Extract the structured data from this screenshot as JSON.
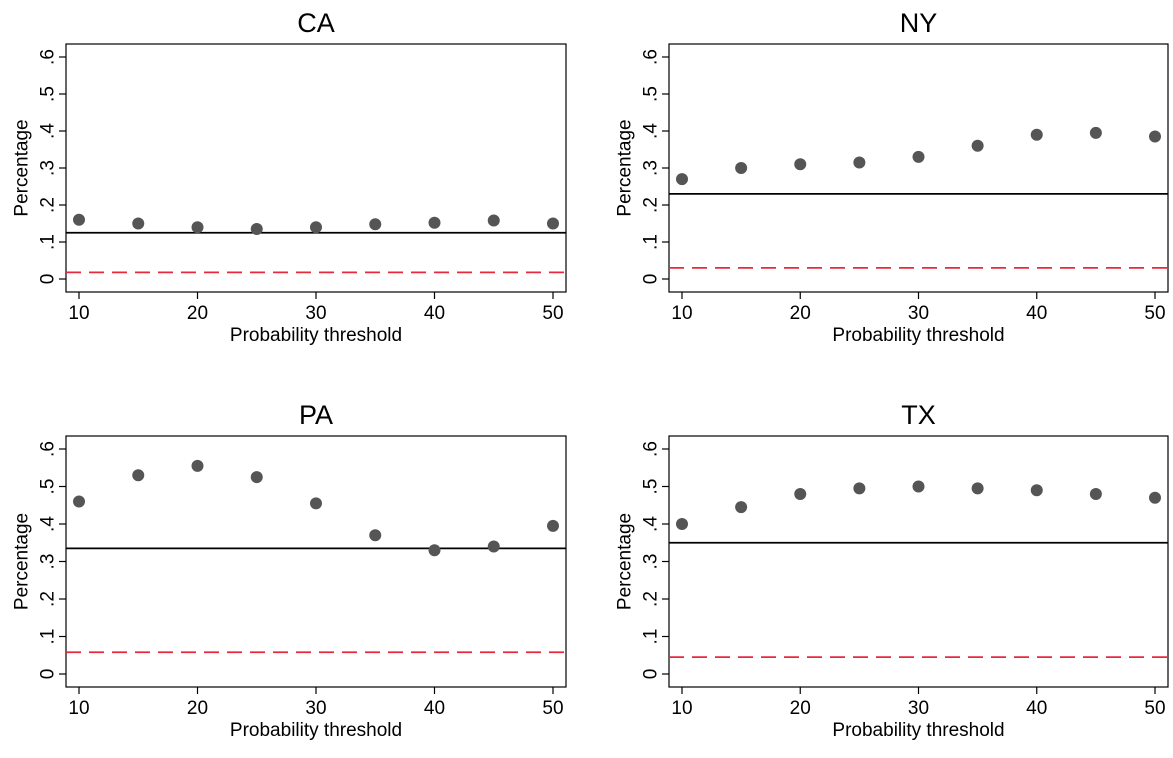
{
  "chart_data": [
    {
      "type": "scatter",
      "title": "CA",
      "xlabel": "Probability threshold",
      "ylabel": "Percentage",
      "x": [
        10,
        15,
        20,
        25,
        30,
        35,
        40,
        45,
        50
      ],
      "series": [
        {
          "values": [
            0.16,
            0.15,
            0.14,
            0.135,
            0.14,
            0.148,
            0.152,
            0.158,
            0.15
          ]
        }
      ],
      "reference_lines": [
        {
          "style": "solid",
          "color": "#000000",
          "y": 0.125
        },
        {
          "style": "dashed",
          "color": "#e8283c",
          "y": 0.018
        }
      ],
      "xticks": [
        "10",
        "20",
        "30",
        "40",
        "50"
      ],
      "yticks": [
        "0",
        ".1",
        ".2",
        ".3",
        ".4",
        ".5",
        ".6"
      ],
      "xlim": [
        10,
        50
      ],
      "ylim": [
        0,
        0.6
      ],
      "grid": false
    },
    {
      "type": "scatter",
      "title": "NY",
      "xlabel": "Probability threshold",
      "ylabel": "Percentage",
      "x": [
        10,
        15,
        20,
        25,
        30,
        35,
        40,
        45,
        50
      ],
      "series": [
        {
          "values": [
            0.27,
            0.3,
            0.31,
            0.315,
            0.33,
            0.36,
            0.39,
            0.395,
            0.385
          ]
        }
      ],
      "reference_lines": [
        {
          "style": "solid",
          "color": "#000000",
          "y": 0.23
        },
        {
          "style": "dashed",
          "color": "#e8283c",
          "y": 0.03
        }
      ],
      "xticks": [
        "10",
        "20",
        "30",
        "40",
        "50"
      ],
      "yticks": [
        "0",
        ".1",
        ".2",
        ".3",
        ".4",
        ".5",
        ".6"
      ],
      "xlim": [
        10,
        50
      ],
      "ylim": [
        0,
        0.6
      ],
      "grid": false
    },
    {
      "type": "scatter",
      "title": "PA",
      "xlabel": "Probability threshold",
      "ylabel": "Percentage",
      "x": [
        10,
        15,
        20,
        25,
        30,
        35,
        40,
        45,
        50
      ],
      "series": [
        {
          "values": [
            0.46,
            0.53,
            0.555,
            0.525,
            0.455,
            0.37,
            0.33,
            0.34,
            0.395
          ]
        }
      ],
      "reference_lines": [
        {
          "style": "solid",
          "color": "#000000",
          "y": 0.335
        },
        {
          "style": "dashed",
          "color": "#e8283c",
          "y": 0.058
        }
      ],
      "xticks": [
        "10",
        "20",
        "30",
        "40",
        "50"
      ],
      "yticks": [
        "0",
        ".1",
        ".2",
        ".3",
        ".4",
        ".5",
        ".6"
      ],
      "xlim": [
        10,
        50
      ],
      "ylim": [
        0,
        0.6
      ],
      "grid": false
    },
    {
      "type": "scatter",
      "title": "TX",
      "xlabel": "Probability threshold",
      "ylabel": "Percentage",
      "x": [
        10,
        15,
        20,
        25,
        30,
        35,
        40,
        45,
        50
      ],
      "series": [
        {
          "values": [
            0.4,
            0.445,
            0.48,
            0.495,
            0.5,
            0.495,
            0.49,
            0.48,
            0.47
          ]
        }
      ],
      "reference_lines": [
        {
          "style": "solid",
          "color": "#000000",
          "y": 0.35
        },
        {
          "style": "dashed",
          "color": "#e8283c",
          "y": 0.045
        }
      ],
      "xticks": [
        "10",
        "20",
        "30",
        "40",
        "50"
      ],
      "yticks": [
        "0",
        ".1",
        ".2",
        ".3",
        ".4",
        ".5",
        ".6"
      ],
      "xlim": [
        10,
        50
      ],
      "ylim": [
        0,
        0.6
      ],
      "grid": false
    }
  ],
  "colors": {
    "marker": "#555555",
    "axis": "#000000",
    "dashed_line": "#e8283c"
  }
}
